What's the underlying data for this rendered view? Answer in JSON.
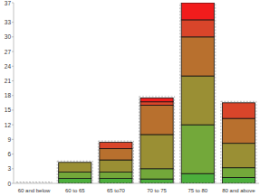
{
  "chart_data": {
    "type": "bar",
    "stacked": true,
    "categories": [
      "60 and below",
      "60 to 65",
      "65 to70",
      "70 to 75",
      "75 to 80",
      "80 and above"
    ],
    "series": [
      {
        "color": "#4caf3c",
        "values": [
          0,
          1,
          1,
          0.9,
          2,
          1.2
        ]
      },
      {
        "color": "#73a83a",
        "values": [
          0,
          1.3,
          1.3,
          2.1,
          10,
          2
        ]
      },
      {
        "color": "#9a8f34",
        "values": [
          0,
          2,
          2.5,
          7,
          10,
          5
        ]
      },
      {
        "color": "#b8702e",
        "values": [
          0,
          0,
          2.3,
          6,
          8,
          5.1
        ]
      },
      {
        "color": "#d9452a",
        "values": [
          0,
          0,
          1.3,
          0.7,
          3.5,
          3.2
        ]
      },
      {
        "color": "#f21c1c",
        "values": [
          0,
          0,
          0,
          0.8,
          3.5,
          0
        ]
      }
    ],
    "ylim": [
      0,
      37
    ],
    "yticks": [
      0,
      3,
      6,
      9,
      12,
      15,
      18,
      21,
      24,
      27,
      30,
      33,
      37
    ],
    "grid": false
  }
}
